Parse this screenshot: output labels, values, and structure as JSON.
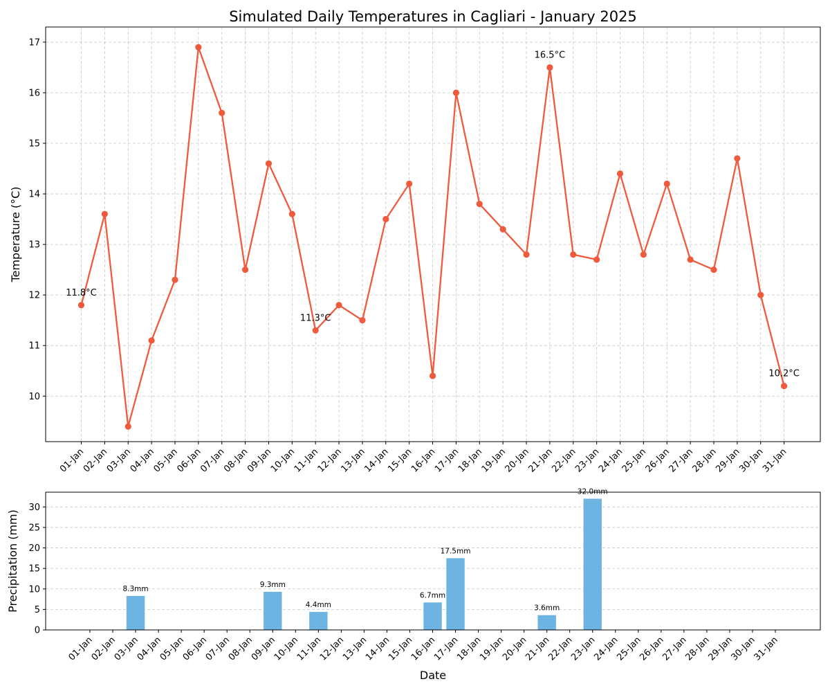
{
  "chart_data": [
    {
      "type": "line",
      "title": "Simulated Daily Temperatures in Cagliari - January 2025",
      "ylabel": "Temperature (°C)",
      "xlabel": "",
      "ylim": [
        9.1,
        17.3
      ],
      "yticks": [
        10,
        11,
        12,
        13,
        14,
        15,
        16,
        17
      ],
      "grid": true,
      "color": "#f05a3c",
      "categories": [
        "01-Jan",
        "02-Jan",
        "03-Jan",
        "04-Jan",
        "05-Jan",
        "06-Jan",
        "07-Jan",
        "08-Jan",
        "09-Jan",
        "10-Jan",
        "11-Jan",
        "12-Jan",
        "13-Jan",
        "14-Jan",
        "15-Jan",
        "16-Jan",
        "17-Jan",
        "18-Jan",
        "19-Jan",
        "20-Jan",
        "21-Jan",
        "22-Jan",
        "23-Jan",
        "24-Jan",
        "25-Jan",
        "26-Jan",
        "27-Jan",
        "28-Jan",
        "29-Jan",
        "30-Jan",
        "31-Jan"
      ],
      "values": [
        11.8,
        13.6,
        9.4,
        11.1,
        12.3,
        16.9,
        15.6,
        12.5,
        14.6,
        13.6,
        11.3,
        11.8,
        11.5,
        13.5,
        14.2,
        10.4,
        16.0,
        13.8,
        13.3,
        12.8,
        16.5,
        12.8,
        12.7,
        14.4,
        12.8,
        14.2,
        12.7,
        12.5,
        14.7,
        12.0,
        10.2
      ],
      "annotations": [
        {
          "index": 0,
          "text": "11.8°C"
        },
        {
          "index": 10,
          "text": "11.3°C"
        },
        {
          "index": 20,
          "text": "16.5°C"
        },
        {
          "index": 30,
          "text": "10.2°C"
        }
      ]
    },
    {
      "type": "bar",
      "title": "",
      "xlabel": "Date",
      "ylabel": "Precipitation (mm)",
      "ylim": [
        0,
        33.6
      ],
      "yticks": [
        0,
        5,
        10,
        15,
        20,
        25,
        30
      ],
      "grid": true,
      "color": "#6eb4e3",
      "categories": [
        "01-Jan",
        "02-Jan",
        "03-Jan",
        "04-Jan",
        "05-Jan",
        "06-Jan",
        "07-Jan",
        "08-Jan",
        "09-Jan",
        "10-Jan",
        "11-Jan",
        "12-Jan",
        "13-Jan",
        "14-Jan",
        "15-Jan",
        "16-Jan",
        "17-Jan",
        "18-Jan",
        "19-Jan",
        "20-Jan",
        "21-Jan",
        "22-Jan",
        "23-Jan",
        "24-Jan",
        "25-Jan",
        "26-Jan",
        "27-Jan",
        "28-Jan",
        "29-Jan",
        "30-Jan",
        "31-Jan"
      ],
      "values": [
        0,
        0,
        8.3,
        0,
        0,
        0,
        0,
        0,
        9.3,
        0,
        4.4,
        0,
        0,
        0,
        0,
        6.7,
        17.5,
        0,
        0,
        0,
        3.6,
        0,
        32.0,
        0,
        0,
        0,
        0,
        0,
        0,
        0,
        0
      ],
      "value_labels": [
        "",
        "",
        "8.3mm",
        "",
        "",
        "",
        "",
        "",
        "9.3mm",
        "",
        "4.4mm",
        "",
        "",
        "",
        "",
        "6.7mm",
        "17.5mm",
        "",
        "",
        "",
        "3.6mm",
        "",
        "32.0mm",
        "",
        "",
        "",
        "",
        "",
        "",
        "",
        ""
      ]
    }
  ]
}
